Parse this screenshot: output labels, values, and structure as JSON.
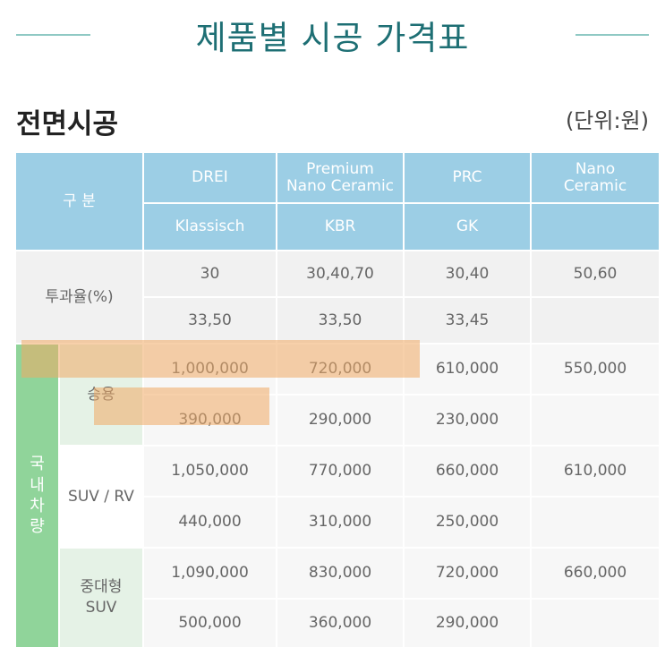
{
  "page": {
    "title": "제품별 시공 가격표"
  },
  "section": {
    "title": "전면시공",
    "unit": "(단위:원)"
  },
  "table": {
    "header_label": "구 분",
    "columns": [
      {
        "brand": "DREI",
        "product": "Klassisch"
      },
      {
        "brand_line1": "Premium",
        "brand_line2": "Nano Ceramic",
        "product": "KBR"
      },
      {
        "brand": "PRC",
        "product": "GK"
      },
      {
        "brand_line1": "Nano",
        "brand_line2": "Ceramic",
        "product": ""
      }
    ],
    "transmittance": {
      "label": "투과율(%)",
      "row1": [
        "30",
        "30,40,70",
        "30,40",
        "50,60"
      ],
      "row2": [
        "33,50",
        "33,50",
        "33,45",
        ""
      ]
    },
    "domestic_label_chars": [
      "국",
      "내",
      "차",
      "량"
    ],
    "groups": [
      {
        "label": "승용",
        "row1": [
          "1,000,000",
          "720,000",
          "610,000",
          "550,000"
        ],
        "row2": [
          "390,000",
          "290,000",
          "230,000",
          ""
        ]
      },
      {
        "label": "SUV / RV",
        "row1": [
          "1,050,000",
          "770,000",
          "660,000",
          "610,000"
        ],
        "row2": [
          "440,000",
          "310,000",
          "250,000",
          ""
        ]
      },
      {
        "label_line1": "중대형",
        "label_line2": "SUV",
        "row1": [
          "1,090,000",
          "830,000",
          "720,000",
          "660,000"
        ],
        "row2": [
          "500,000",
          "360,000",
          "290,000",
          ""
        ]
      }
    ]
  }
}
